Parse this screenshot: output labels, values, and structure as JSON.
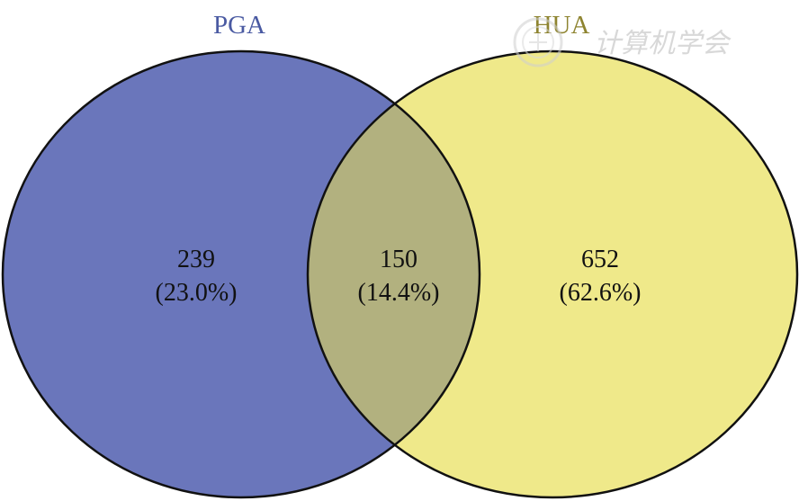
{
  "sets": [
    {
      "label": "PGA",
      "color": "#6a76bb",
      "label_color": "#4a5aa2"
    },
    {
      "label": "HUA",
      "color": "#efe98a",
      "label_color": "#8e8430"
    }
  ],
  "overlap_color": "#b2b17f",
  "outline_color": "#111111",
  "regions": {
    "pga_only": {
      "count": "239",
      "percent": "(23.0%)"
    },
    "both": {
      "count": "150",
      "percent": "(14.4%)"
    },
    "hua_only": {
      "count": "652",
      "percent": "(62.6%)"
    }
  },
  "watermark": {
    "text": "计算机学会",
    "icon": "seal-logo-icon"
  }
}
